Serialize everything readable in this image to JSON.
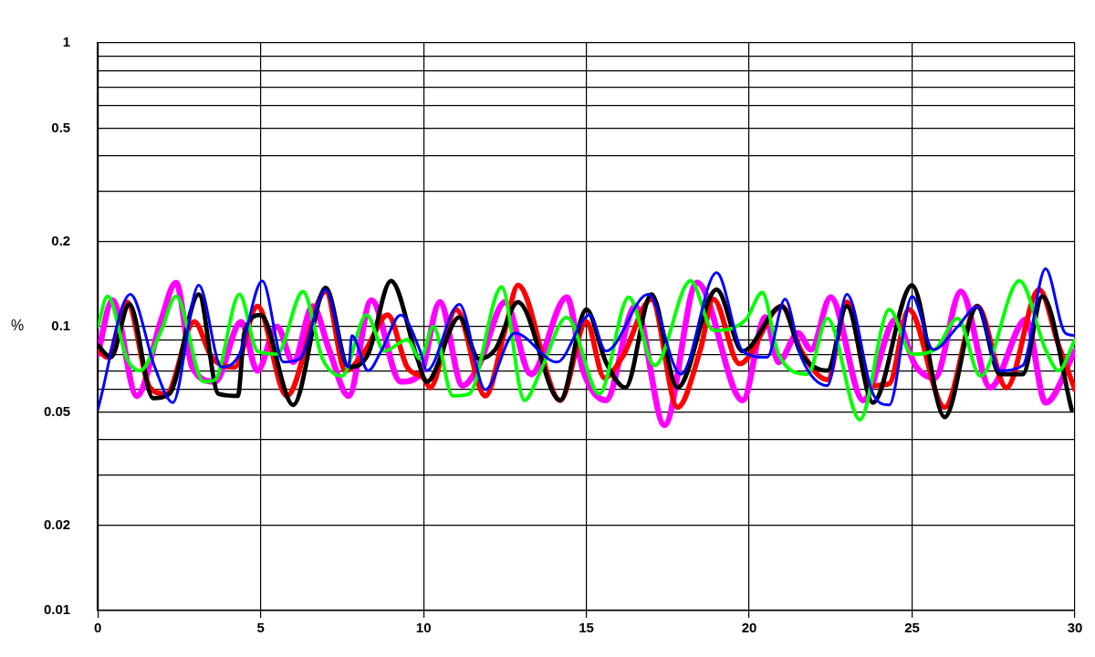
{
  "chart_data": {
    "type": "line",
    "ylabel": "%",
    "log": true,
    "grid": true,
    "legend": false,
    "marker": "none",
    "line_style": "solid",
    "xlim": [
      0,
      30
    ],
    "xticks": [
      0,
      5,
      10,
      15,
      20,
      25,
      30
    ],
    "ylim": [
      0.01,
      1
    ],
    "yticks": [
      0.01,
      0.02,
      {
        "value": 0.03,
        "label": null
      },
      {
        "value": 0.04,
        "label": null
      },
      0.05,
      {
        "value": 0.06,
        "label": null
      },
      {
        "value": 0.07,
        "label": null
      },
      {
        "value": 0.08,
        "label": null
      },
      {
        "value": 0.09,
        "label": null
      },
      0.1,
      0.2,
      {
        "value": 0.3,
        "label": null
      },
      {
        "value": 0.4,
        "label": null
      },
      0.5,
      {
        "value": 0.6,
        "label": null
      },
      {
        "value": 0.7,
        "label": null
      },
      {
        "value": 0.8,
        "label": null
      },
      {
        "value": 0.9,
        "label": null
      },
      1
    ],
    "series": [
      {
        "color": "#0000ff",
        "x": [
          0,
          1.0,
          1.75,
          2.3,
          3.1,
          3.8,
          4.35,
          5.05,
          5.7,
          6.2,
          7.0,
          7.7,
          7.8,
          8.3,
          8.7,
          9.3,
          9.9,
          10.1,
          11.1,
          11.9,
          12.8,
          14.1,
          15.1,
          15.6,
          16.9,
          17.9,
          19.0,
          19.8,
          20.55,
          21.1,
          21.6,
          22.4,
          23.0,
          23.8,
          24.3,
          25.0,
          25.65,
          26.4,
          27.0,
          27.7,
          28.4,
          29.1,
          29.7,
          30
        ],
        "values": [
          0.051,
          0.13,
          0.072,
          0.054,
          0.14,
          0.072,
          0.08,
          0.145,
          0.075,
          0.077,
          0.135,
          0.072,
          0.093,
          0.07,
          0.082,
          0.11,
          0.082,
          0.07,
          0.12,
          0.06,
          0.095,
          0.075,
          0.11,
          0.082,
          0.13,
          0.068,
          0.155,
          0.082,
          0.078,
          0.125,
          0.078,
          0.062,
          0.13,
          0.058,
          0.053,
          0.128,
          0.083,
          0.1,
          0.118,
          0.07,
          0.073,
          0.16,
          0.095,
          0.093
        ]
      },
      {
        "color": "#00ff00",
        "x": [
          0,
          0.3,
          0.9,
          1.3,
          1.95,
          2.4,
          3.25,
          3.6,
          4.35,
          4.9,
          5.5,
          6.3,
          6.9,
          7.5,
          8.25,
          8.8,
          9.5,
          9.9,
          10.3,
          10.9,
          11.4,
          12.4,
          13.1,
          13.6,
          14.4,
          15.4,
          16.3,
          17.1,
          18.2,
          18.9,
          19.9,
          20.4,
          20.9,
          21.8,
          22.4,
          23.4,
          24.3,
          25.0,
          25.7,
          26.4,
          27.1,
          28.3,
          29.1,
          29.5,
          30
        ],
        "values": [
          0.1,
          0.128,
          0.077,
          0.07,
          0.097,
          0.128,
          0.064,
          0.065,
          0.13,
          0.082,
          0.08,
          0.133,
          0.077,
          0.067,
          0.11,
          0.082,
          0.09,
          0.077,
          0.1,
          0.057,
          0.058,
          0.138,
          0.055,
          0.07,
          0.108,
          0.058,
          0.127,
          0.073,
          0.145,
          0.097,
          0.106,
          0.132,
          0.08,
          0.068,
          0.107,
          0.047,
          0.115,
          0.08,
          0.083,
          0.107,
          0.067,
          0.145,
          0.083,
          0.07,
          0.09
        ]
      },
      {
        "color": "#000000",
        "x": [
          0,
          0.4,
          0.97,
          1.7,
          2.2,
          3.1,
          3.7,
          4.3,
          4.5,
          5.0,
          6.0,
          7.0,
          7.7,
          8.3,
          9.0,
          9.8,
          10.1,
          11.1,
          11.7,
          12.2,
          12.9,
          14.2,
          15.0,
          15.6,
          16.2,
          17.0,
          17.8,
          19.0,
          19.8,
          21.0,
          21.6,
          22.4,
          23.0,
          23.8,
          25.0,
          26.0,
          27.0,
          27.7,
          28.4,
          29.0,
          29.9
        ],
        "values": [
          0.086,
          0.078,
          0.12,
          0.056,
          0.058,
          0.13,
          0.058,
          0.057,
          0.095,
          0.11,
          0.053,
          0.137,
          0.072,
          0.08,
          0.145,
          0.078,
          0.064,
          0.108,
          0.077,
          0.083,
          0.122,
          0.055,
          0.115,
          0.075,
          0.061,
          0.13,
          0.061,
          0.135,
          0.082,
          0.118,
          0.08,
          0.07,
          0.118,
          0.054,
          0.14,
          0.048,
          0.118,
          0.068,
          0.068,
          0.128,
          0.051
        ]
      },
      {
        "color": "#ff0000",
        "x": [
          0,
          0.3,
          0.9,
          1.6,
          2.1,
          2.96,
          3.5,
          4.2,
          4.9,
          5.8,
          7.0,
          7.6,
          8.2,
          8.9,
          9.5,
          10.0,
          10.2,
          11.0,
          11.9,
          12.5,
          12.9,
          14.2,
          15.0,
          15.55,
          16.1,
          17.0,
          17.8,
          18.5,
          18.9,
          19.7,
          21.0,
          21.6,
          22.4,
          23.0,
          23.7,
          24.3,
          24.9,
          26.0,
          27.0,
          27.9,
          28.9,
          29.5,
          30
        ],
        "values": [
          0.083,
          0.078,
          0.122,
          0.061,
          0.058,
          0.104,
          0.078,
          0.072,
          0.118,
          0.057,
          0.133,
          0.07,
          0.082,
          0.11,
          0.072,
          0.066,
          0.061,
          0.115,
          0.057,
          0.097,
          0.14,
          0.055,
          0.104,
          0.066,
          0.078,
          0.125,
          0.052,
          0.083,
          0.125,
          0.074,
          0.118,
          0.082,
          0.065,
          0.122,
          0.062,
          0.063,
          0.115,
          0.052,
          0.118,
          0.061,
          0.135,
          0.086,
          0.06
        ]
      },
      {
        "color": "#ff00ff",
        "x": [
          0,
          0.45,
          1.2,
          1.95,
          2.4,
          2.9,
          3.6,
          4.4,
          4.9,
          5.5,
          6.0,
          6.6,
          7.1,
          7.7,
          8.4,
          9.3,
          9.9,
          10.5,
          11.2,
          11.7,
          12.5,
          13.3,
          14.4,
          14.9,
          15.6,
          16.5,
          17.4,
          18.4,
          19.8,
          20.5,
          20.9,
          21.5,
          21.9,
          22.5,
          23.5,
          24.5,
          25.1,
          25.7,
          26.5,
          27.4,
          28.5,
          29.1,
          30
        ],
        "values": [
          0.08,
          0.124,
          0.057,
          0.106,
          0.143,
          0.072,
          0.064,
          0.104,
          0.07,
          0.1,
          0.075,
          0.118,
          0.083,
          0.057,
          0.124,
          0.064,
          0.068,
          0.122,
          0.062,
          0.073,
          0.122,
          0.068,
          0.127,
          0.07,
          0.055,
          0.118,
          0.045,
          0.143,
          0.055,
          0.108,
          0.075,
          0.095,
          0.083,
          0.127,
          0.055,
          0.106,
          0.073,
          0.066,
          0.133,
          0.061,
          0.106,
          0.054,
          0.082
        ]
      }
    ]
  }
}
